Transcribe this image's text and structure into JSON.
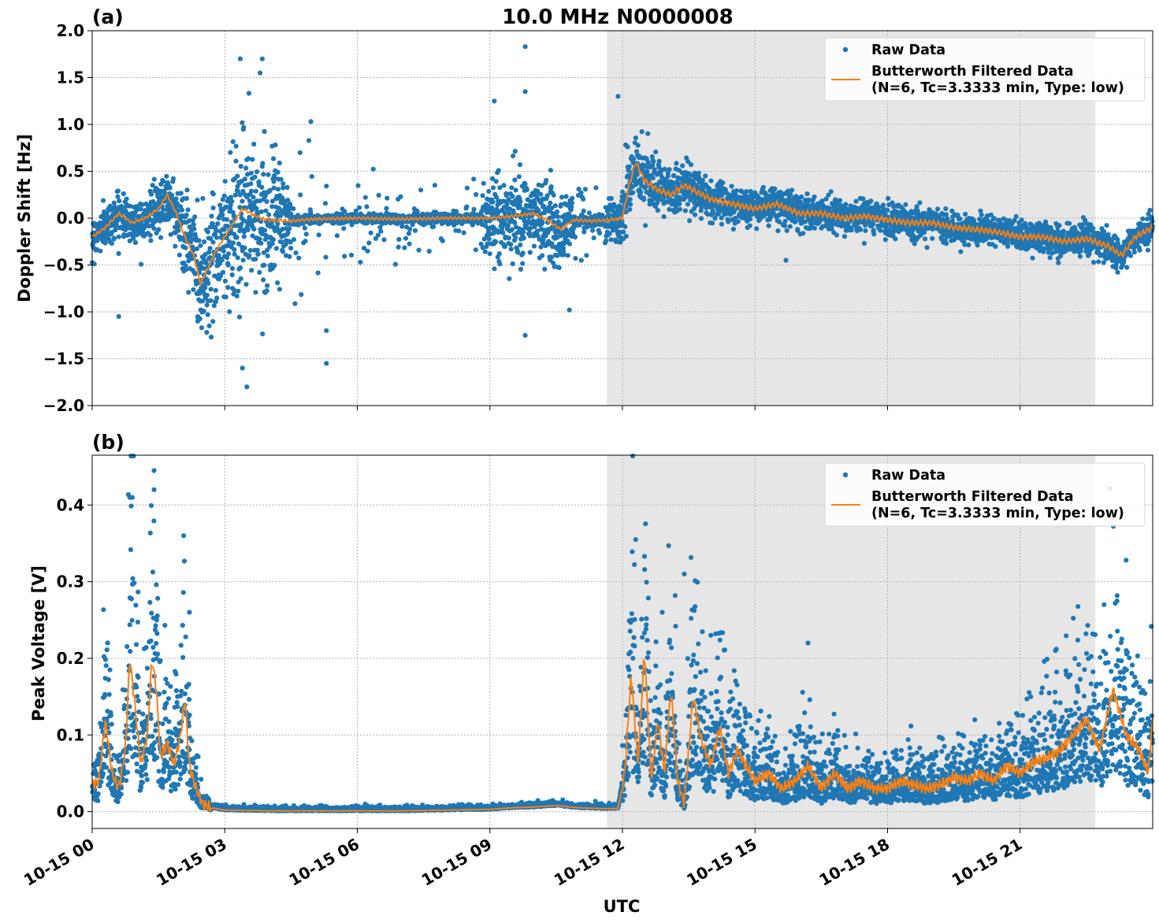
{
  "figure_title": "10.0 MHz N0000008",
  "colors": {
    "raw": "#1f77b4",
    "filtered": "#ff7f0e",
    "shade": "#e6e6e6",
    "grid": "#b0b0b0"
  },
  "chart_data": [
    {
      "panel_label": "(a)",
      "type": "scatter",
      "ylabel": "Doppler Shift [Hz]",
      "xlabel": "",
      "xlim_hours": [
        0,
        24
      ],
      "ylim": [
        -2.0,
        2.0
      ],
      "y_ticks": [
        -2.0,
        -1.5,
        -1.0,
        -0.5,
        0.0,
        0.5,
        1.0,
        1.5,
        2.0
      ],
      "y_tick_labels": [
        "−2.0",
        "−1.5",
        "−1.0",
        "−0.5",
        "0.0",
        "0.5",
        "1.0",
        "1.5",
        "2.0"
      ],
      "grid": true,
      "legend": {
        "placement": "top-right",
        "entries": [
          "Raw Data",
          "Butterworth Filtered Data\n(N=6, Tc=3.3333 min, Type: low)"
        ]
      },
      "shaded_region_hours": [
        11.65,
        22.7
      ],
      "filtered_series": {
        "name": "Butterworth Filtered Data\n(N=6, Tc=3.3333 min, Type: low)",
        "x_hours": [
          0,
          0.3,
          0.6,
          0.9,
          1.2,
          1.5,
          1.7,
          1.9,
          2.1,
          2.3,
          2.45,
          2.6,
          2.8,
          3.0,
          3.2,
          3.4,
          3.6,
          3.8,
          4.0,
          4.5,
          5,
          6,
          7,
          8,
          9,
          9.5,
          10,
          10.3,
          10.6,
          10.9,
          11.3,
          11.7,
          12.0,
          12.15,
          12.3,
          12.5,
          12.8,
          13.1,
          13.4,
          13.6,
          14,
          14.5,
          15,
          15.5,
          16,
          16.5,
          17,
          17.5,
          18,
          18.5,
          19,
          19.5,
          20,
          20.5,
          21,
          21.5,
          22,
          22.5,
          23,
          23.3,
          23.6,
          24
        ],
        "y": [
          -0.2,
          -0.1,
          0.05,
          -0.05,
          0.0,
          0.1,
          0.25,
          0.05,
          -0.2,
          -0.4,
          -0.7,
          -0.55,
          -0.35,
          -0.2,
          -0.05,
          0.1,
          0.05,
          0.0,
          -0.02,
          -0.03,
          -0.01,
          0.0,
          -0.01,
          0.0,
          0.0,
          0.02,
          0.05,
          -0.02,
          -0.12,
          -0.02,
          -0.03,
          -0.02,
          0.0,
          0.35,
          0.6,
          0.4,
          0.3,
          0.25,
          0.35,
          0.3,
          0.2,
          0.15,
          0.1,
          0.15,
          0.05,
          0.05,
          0.0,
          0.02,
          -0.02,
          -0.05,
          -0.05,
          -0.1,
          -0.12,
          -0.15,
          -0.2,
          -0.2,
          -0.25,
          -0.22,
          -0.3,
          -0.4,
          -0.2,
          -0.1
        ]
      },
      "raw_series": {
        "name": "Raw Data",
        "spread_x_hours": [
          0,
          1.0,
          1.8,
          2.4,
          2.8,
          3.3,
          3.8,
          4.2,
          5.0,
          6.0,
          7.0,
          8.0,
          9.0,
          9.5,
          10.0,
          10.5,
          11.0,
          11.65,
          12.1,
          12.3,
          13.0,
          14.0,
          16.0,
          18.0,
          20.0,
          22.0,
          24.0
        ],
        "spread_hz": [
          0.18,
          0.2,
          0.25,
          0.55,
          0.6,
          0.85,
          0.6,
          0.45,
          0.35,
          0.3,
          0.2,
          0.12,
          0.3,
          0.45,
          0.35,
          0.4,
          0.25,
          0.2,
          0.35,
          0.28,
          0.24,
          0.18,
          0.16,
          0.15,
          0.14,
          0.14,
          0.15
        ],
        "outliers": [
          [
            3.35,
            1.7
          ],
          [
            3.85,
            1.7
          ],
          [
            3.8,
            1.55
          ],
          [
            9.8,
            1.83
          ],
          [
            9.8,
            1.35
          ],
          [
            9.1,
            1.25
          ],
          [
            11.9,
            1.3
          ],
          [
            3.5,
            -1.8
          ],
          [
            3.4,
            -1.6
          ],
          [
            5.3,
            -1.55
          ],
          [
            5.3,
            -1.2
          ],
          [
            9.8,
            -1.25
          ],
          [
            0.6,
            -1.05
          ],
          [
            10.8,
            -0.98
          ],
          [
            15.7,
            -0.45
          ],
          [
            4.95,
            1.03
          ]
        ]
      }
    },
    {
      "panel_label": "(b)",
      "type": "scatter",
      "ylabel": "Peak Voltage [V]",
      "xlabel": "UTC",
      "xlim_hours": [
        0,
        24
      ],
      "ylim": [
        -0.022,
        0.465
      ],
      "y_ticks": [
        0.0,
        0.1,
        0.2,
        0.3,
        0.4
      ],
      "y_tick_labels": [
        "0.0",
        "0.1",
        "0.2",
        "0.3",
        "0.4"
      ],
      "x_ticks_hours": [
        0,
        3,
        6,
        9,
        12,
        15,
        18,
        21
      ],
      "x_tick_labels": [
        "10-15 00",
        "10-15 03",
        "10-15 06",
        "10-15 09",
        "10-15 12",
        "10-15 15",
        "10-15 18",
        "10-15 21"
      ],
      "grid": true,
      "legend": {
        "placement": "top-right",
        "entries": [
          "Raw Data",
          "Butterworth Filtered Data\n(N=6, Tc=3.3333 min, Type: low)"
        ]
      },
      "shaded_region_hours": [
        11.65,
        22.7
      ],
      "filtered_series": {
        "name": "Butterworth Filtered Data\n(N=6, Tc=3.3333 min, Type: low)",
        "x_hours": [
          0,
          0.15,
          0.3,
          0.45,
          0.6,
          0.75,
          0.85,
          0.95,
          1.1,
          1.25,
          1.35,
          1.45,
          1.55,
          1.7,
          1.85,
          2.0,
          2.1,
          2.2,
          2.35,
          2.5,
          2.7,
          3.0,
          4,
          5,
          6,
          7,
          8,
          9,
          9.5,
          10,
          10.5,
          11,
          11.5,
          11.9,
          12.05,
          12.2,
          12.35,
          12.5,
          12.65,
          12.8,
          12.95,
          13.1,
          13.25,
          13.4,
          13.6,
          13.8,
          14.0,
          14.2,
          14.4,
          14.6,
          14.8,
          15.0,
          15.3,
          15.6,
          15.9,
          16.2,
          16.5,
          16.8,
          17.1,
          17.4,
          17.7,
          18.0,
          18.3,
          18.6,
          18.9,
          19.2,
          19.5,
          19.8,
          20.1,
          20.4,
          20.7,
          21.0,
          21.3,
          21.6,
          21.9,
          22.2,
          22.5,
          22.8,
          23.1,
          23.4,
          23.7,
          23.9,
          24
        ],
        "y": [
          0.035,
          0.04,
          0.12,
          0.05,
          0.03,
          0.08,
          0.2,
          0.15,
          0.06,
          0.1,
          0.2,
          0.16,
          0.07,
          0.09,
          0.06,
          0.1,
          0.15,
          0.06,
          0.03,
          0.01,
          0.005,
          0.002,
          0.001,
          0.001,
          0.001,
          0.001,
          0.002,
          0.003,
          0.005,
          0.006,
          0.008,
          0.005,
          0.004,
          0.004,
          0.05,
          0.18,
          0.06,
          0.21,
          0.04,
          0.12,
          0.05,
          0.16,
          0.04,
          0.01,
          0.15,
          0.09,
          0.06,
          0.11,
          0.05,
          0.08,
          0.06,
          0.04,
          0.05,
          0.03,
          0.04,
          0.06,
          0.03,
          0.05,
          0.03,
          0.04,
          0.03,
          0.03,
          0.04,
          0.035,
          0.03,
          0.035,
          0.045,
          0.04,
          0.05,
          0.04,
          0.06,
          0.05,
          0.065,
          0.07,
          0.08,
          0.1,
          0.12,
          0.08,
          0.16,
          0.1,
          0.08,
          0.05,
          0.12
        ]
      },
      "raw_series": {
        "name": "Raw Data",
        "outliers": [
          [
            1.4,
            0.445
          ],
          [
            0.85,
            0.41
          ],
          [
            1.4,
            0.42
          ],
          [
            12.3,
            0.355
          ],
          [
            13.4,
            0.31
          ],
          [
            23.4,
            0.328
          ],
          [
            2.2,
            0.26
          ],
          [
            12.9,
            0.26
          ],
          [
            14.0,
            0.23
          ],
          [
            16.2,
            0.22
          ],
          [
            21.8,
            0.21
          ],
          [
            22.9,
            0.27
          ]
        ]
      }
    }
  ]
}
